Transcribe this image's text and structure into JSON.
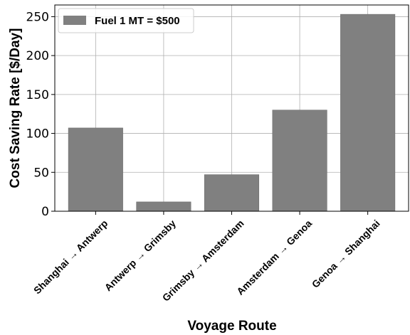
{
  "chart_data": {
    "type": "bar",
    "categories": [
      "Shanghai → Antwerp",
      "Antwerp → Grimsby",
      "Grimsby → Amsterdam",
      "Amsterdam → Genoa",
      "Genoa → Shanghai"
    ],
    "series": [
      {
        "name": "Fuel 1 MT = $500",
        "values": [
          107,
          12,
          47,
          130,
          253
        ]
      }
    ],
    "xlabel": "Voyage Route",
    "ylabel": "Cost Saving Rate [$/Day]",
    "ylim": [
      0,
      265
    ],
    "yticks": [
      0,
      50,
      100,
      150,
      200,
      250
    ],
    "grid": true,
    "legend": "top-left",
    "colors": {
      "bar": "#808080",
      "bar_edge": "#6e6e6e",
      "grid": "#b0b0b0",
      "axes": "#000000"
    }
  }
}
